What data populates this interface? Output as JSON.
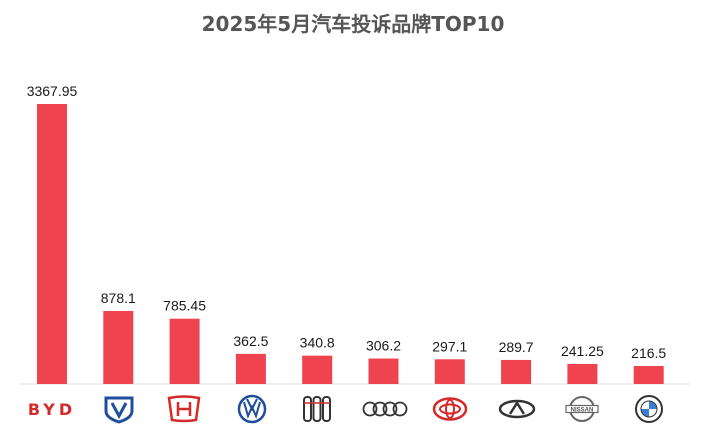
{
  "chart_data": {
    "type": "bar",
    "title": "2025年5月汽车投诉品牌TOP10",
    "categories": [
      "byd-logo",
      "changan-logo",
      "honda-logo",
      "volkswagen-logo",
      "hongqi-logo",
      "audi-logo",
      "toyota-logo",
      "chery-logo",
      "nissan-logo",
      "bmw-logo"
    ],
    "values": [
      3367.95,
      878.1,
      785.45,
      362.5,
      340.8,
      306.2,
      297.1,
      289.7,
      241.25,
      216.5
    ],
    "value_labels": [
      "3367.95",
      "878.1",
      "785.45",
      "362.5",
      "340.8",
      "306.2",
      "297.1",
      "289.7",
      "241.25",
      "216.5"
    ],
    "logo_text": {
      "byd": "BYD",
      "nissan": "NISSAN"
    },
    "xlabel": "",
    "ylabel": "",
    "ylim": [
      0,
      3367.95
    ],
    "grid": false,
    "legend": "none",
    "colors": {
      "bar": "#f04350",
      "title": "#555555",
      "logo_blue": "#1f4e9c",
      "logo_red": "#d42a2a",
      "logo_dark": "#333333",
      "axis": "#dddddd"
    }
  }
}
